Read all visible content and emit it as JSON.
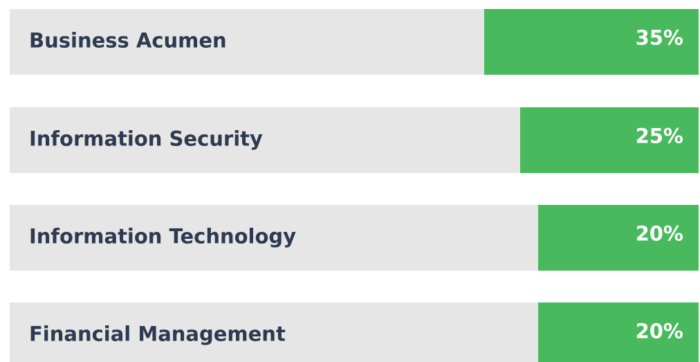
{
  "chart_data": {
    "type": "bar",
    "orientation": "horizontal",
    "categories": [
      "Business Acumen",
      "Information Security",
      "Information Technology",
      "Financial Management"
    ],
    "values": [
      35,
      25,
      20,
      20
    ],
    "value_labels": [
      "35%",
      "25%",
      "20%",
      "20%"
    ],
    "color": "#48b95c",
    "track_color": "#e6e6e6"
  }
}
